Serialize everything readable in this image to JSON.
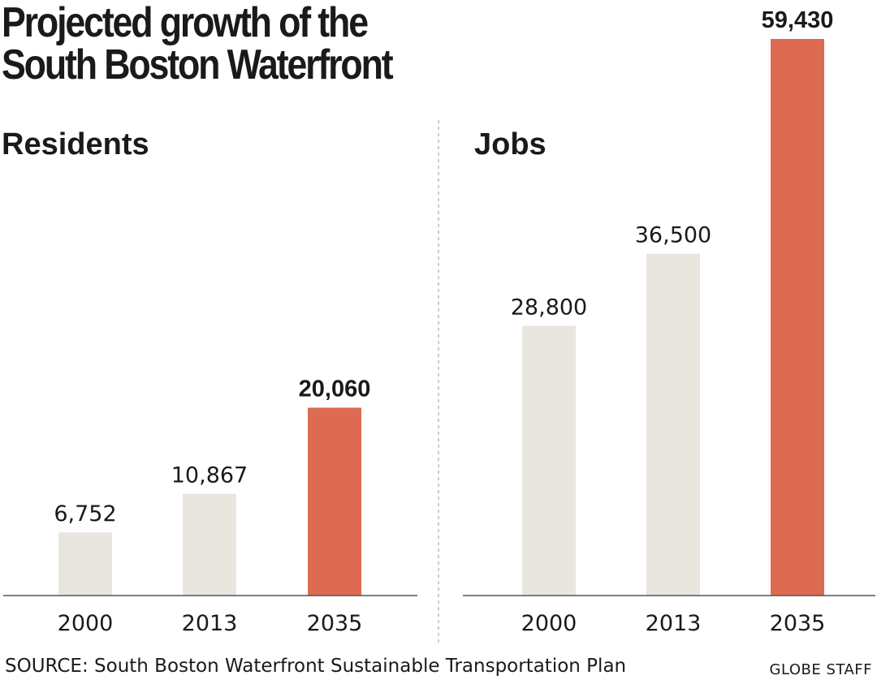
{
  "title_lines": [
    "Projected growth of the",
    "South Boston Waterfront"
  ],
  "source": "SOURCE: South Boston Waterfront Sustainable Transportation Plan",
  "credit": "GLOBE STAFF",
  "colors": {
    "base_bar": "#e8e6de",
    "highlight_bar": "#dd6b52",
    "axis": "#555555",
    "divider": "#bbbbbb"
  },
  "chart_data": [
    {
      "type": "bar",
      "title": "Residents",
      "categories": [
        "2000",
        "2013",
        "2035"
      ],
      "values": [
        6752,
        10867,
        20060
      ],
      "value_labels": [
        "6,752",
        "10,867",
        "20,060"
      ],
      "highlight_index": 2,
      "xlabel": "",
      "ylabel": "",
      "ylim": [
        0,
        59430
      ],
      "grid": false
    },
    {
      "type": "bar",
      "title": "Jobs",
      "categories": [
        "2000",
        "2013",
        "2035"
      ],
      "values": [
        28800,
        36500,
        59430
      ],
      "value_labels": [
        "28,800",
        "36,500",
        "59,430"
      ],
      "highlight_index": 2,
      "xlabel": "",
      "ylabel": "",
      "ylim": [
        0,
        59430
      ],
      "grid": false
    }
  ]
}
